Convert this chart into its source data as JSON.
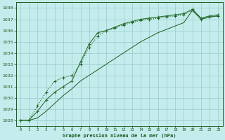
{
  "title": "Graphe pression niveau de la mer (hPa)",
  "background_color": "#c5eced",
  "grid_color": "#9dd0d0",
  "line_color_dark": "#1a5c20",
  "line_color_mid": "#2a7030",
  "xlim": [
    -0.5,
    23.5
  ],
  "ylim": [
    1027.5,
    1038.5
  ],
  "yticks": [
    1028,
    1029,
    1030,
    1031,
    1032,
    1033,
    1034,
    1035,
    1036,
    1037,
    1038
  ],
  "xticks": [
    0,
    1,
    2,
    3,
    4,
    5,
    6,
    7,
    8,
    9,
    10,
    11,
    12,
    13,
    14,
    15,
    16,
    17,
    18,
    19,
    20,
    21,
    22,
    23
  ],
  "series1_x": [
    0,
    1,
    2,
    3,
    4,
    5,
    6,
    7,
    8,
    9,
    10,
    11,
    12,
    13,
    14,
    15,
    16,
    17,
    18,
    19,
    20,
    21,
    22,
    23
  ],
  "series1_y": [
    1028.0,
    1028.0,
    1029.3,
    1030.5,
    1031.5,
    1031.8,
    1032.0,
    1033.0,
    1034.5,
    1035.5,
    1036.0,
    1036.2,
    1036.5,
    1036.7,
    1036.9,
    1037.0,
    1037.1,
    1037.2,
    1037.3,
    1037.4,
    1037.8,
    1037.0,
    1037.2,
    1037.3
  ],
  "series2_x": [
    0,
    1,
    2,
    3,
    4,
    5,
    6,
    7,
    8,
    9,
    10,
    11,
    12,
    13,
    14,
    15,
    16,
    17,
    18,
    19,
    20,
    21,
    22,
    23
  ],
  "series2_y": [
    1028.0,
    1028.0,
    1028.2,
    1028.8,
    1029.5,
    1030.2,
    1030.8,
    1031.5,
    1032.0,
    1032.5,
    1033.0,
    1033.5,
    1034.0,
    1034.5,
    1035.0,
    1035.4,
    1035.8,
    1036.1,
    1036.4,
    1036.7,
    1037.8,
    1037.0,
    1037.2,
    1037.3
  ],
  "series3_x": [
    0,
    1,
    2,
    3,
    4,
    5,
    6,
    7,
    8,
    9,
    10,
    11,
    12,
    13,
    14,
    15,
    16,
    17,
    18,
    19,
    20,
    21,
    22,
    23
  ],
  "series3_y": [
    1028.0,
    1028.0,
    1028.8,
    1029.8,
    1030.5,
    1031.0,
    1031.5,
    1033.2,
    1034.8,
    1035.8,
    1036.0,
    1036.3,
    1036.6,
    1036.8,
    1037.0,
    1037.1,
    1037.2,
    1037.3,
    1037.4,
    1037.5,
    1037.9,
    1037.1,
    1037.3,
    1037.4
  ]
}
